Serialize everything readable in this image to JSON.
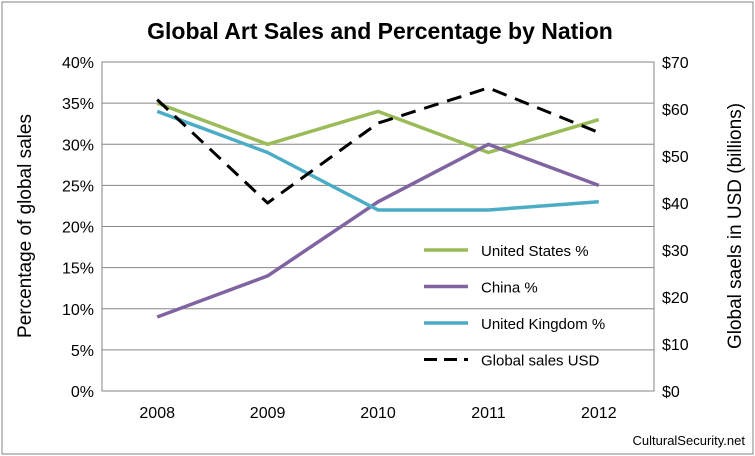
{
  "chart_data": {
    "type": "line",
    "title": "Global Art Sales and Percentage by Nation",
    "categories": [
      "2008",
      "2009",
      "2010",
      "2011",
      "2012"
    ],
    "y_left": {
      "label": "Percentage of global sales",
      "ticks": [
        "0%",
        "5%",
        "10%",
        "15%",
        "20%",
        "25%",
        "30%",
        "35%",
        "40%"
      ],
      "range": [
        0,
        40
      ]
    },
    "y_right": {
      "label": "Global saels in USD (billions)",
      "ticks": [
        "$0",
        "$10",
        "$20",
        "$30",
        "$40",
        "$50",
        "$60",
        "$70"
      ],
      "range": [
        0,
        70
      ]
    },
    "series": [
      {
        "name": "United States %",
        "axis": "left",
        "color": "#9BBB59",
        "dash": "solid",
        "values": [
          35,
          30,
          34,
          29,
          33
        ]
      },
      {
        "name": "China %",
        "axis": "left",
        "color": "#8064A2",
        "dash": "solid",
        "values": [
          9,
          14,
          23,
          30,
          25
        ]
      },
      {
        "name": "United Kingdom %",
        "axis": "left",
        "color": "#4BACC6",
        "dash": "solid",
        "values": [
          34,
          29,
          22,
          22,
          23
        ]
      },
      {
        "name": "Global sales USD",
        "axis": "right",
        "color": "#000000",
        "dash": "dashed",
        "values": [
          62,
          40,
          57,
          64.5,
          55
        ]
      }
    ],
    "grid": true,
    "legend": "lower-right, inside plot"
  },
  "watermark": "CulturalSecurity.net"
}
